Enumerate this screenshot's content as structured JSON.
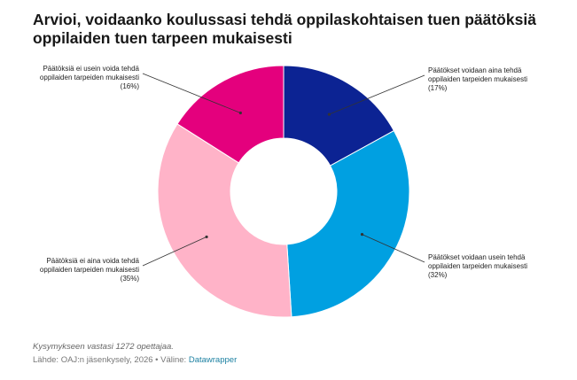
{
  "title": "Arvioi, voidaanko koulussasi tehdä oppilaskohtaisen tuen päätöksiä oppilaiden tuen tarpeen mukaisesti",
  "chart_data": {
    "type": "pie",
    "variant": "donut",
    "categories": [
      "Päätökset voidaan aina tehdä oppilaiden tarpeiden mukaisesti",
      "Päätökset voidaan usein tehdä oppilaiden tarpeiden mukaisesti",
      "Päätöksiä ei aina voida tehdä oppilaiden tarpeiden mukaisesti",
      "Päätöksiä ei usein voida tehdä oppilaiden tarpeiden mukaisesti"
    ],
    "values": [
      17,
      32,
      35,
      16
    ],
    "value_labels": [
      "(17%)",
      "(32%)",
      "(35%)",
      "(16%)"
    ],
    "colors": [
      "#0c2393",
      "#00a0e1",
      "#ffb3c8",
      "#e4007d"
    ],
    "label_lines": [
      [
        "Päätökset voidaan aina tehdä",
        "oppilaiden tarpeiden mukaisesti"
      ],
      [
        "Päätökset voidaan usein tehdä",
        "oppilaiden tarpeiden mukaisesti"
      ],
      [
        "Päätöksiä ei aina voida tehdä",
        "oppilaiden tarpeiden mukaisesti"
      ],
      [
        "Päätöksiä ei usein voida tehdä",
        "oppilaiden tarpeiden mukaisesti"
      ]
    ]
  },
  "footer": {
    "note": "Kysymykseen vastasi 1272 opettajaa.",
    "source_prefix": "Lähde: OAJ:n jäsenkysely, 2026 • Väline: ",
    "tool": "Datawrapper"
  }
}
